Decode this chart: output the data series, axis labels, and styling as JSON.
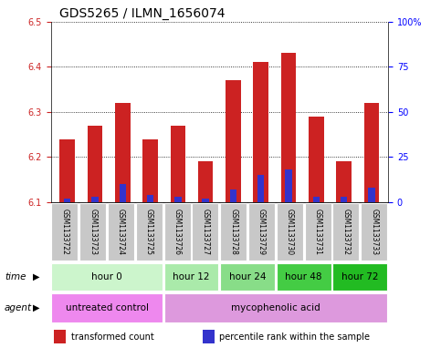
{
  "title": "GDS5265 / ILMN_1656074",
  "samples": [
    "GSM1133722",
    "GSM1133723",
    "GSM1133724",
    "GSM1133725",
    "GSM1133726",
    "GSM1133727",
    "GSM1133728",
    "GSM1133729",
    "GSM1133730",
    "GSM1133731",
    "GSM1133732",
    "GSM1133733"
  ],
  "transformed_counts": [
    6.24,
    6.27,
    6.32,
    6.24,
    6.27,
    6.19,
    6.37,
    6.41,
    6.43,
    6.29,
    6.19,
    6.32
  ],
  "percentile_ranks": [
    2,
    3,
    10,
    4,
    3,
    2,
    7,
    15,
    18,
    3,
    3,
    8
  ],
  "bar_base": 6.1,
  "ylim_left": [
    6.1,
    6.5
  ],
  "ylim_right": [
    0,
    100
  ],
  "yticks_left": [
    6.1,
    6.2,
    6.3,
    6.4,
    6.5
  ],
  "yticks_right": [
    0,
    25,
    50,
    75,
    100
  ],
  "ytick_labels_right": [
    "0",
    "25",
    "50",
    "75",
    "100%"
  ],
  "bar_color_red": "#cc2222",
  "bar_color_blue": "#3333cc",
  "plot_bg": "#ffffff",
  "time_groups": [
    {
      "label": "hour 0",
      "start": 0,
      "end": 4,
      "color": "#ccf5cc"
    },
    {
      "label": "hour 12",
      "start": 4,
      "end": 6,
      "color": "#aaeaaa"
    },
    {
      "label": "hour 24",
      "start": 6,
      "end": 8,
      "color": "#88dd88"
    },
    {
      "label": "hour 48",
      "start": 8,
      "end": 10,
      "color": "#44cc44"
    },
    {
      "label": "hour 72",
      "start": 10,
      "end": 12,
      "color": "#22bb22"
    }
  ],
  "agent_groups": [
    {
      "label": "untreated control",
      "start": 0,
      "end": 4,
      "color": "#ee88ee"
    },
    {
      "label": "mycophenolic acid",
      "start": 4,
      "end": 12,
      "color": "#dd99dd"
    }
  ],
  "legend_items": [
    {
      "label": "transformed count",
      "color": "#cc2222"
    },
    {
      "label": "percentile rank within the sample",
      "color": "#3333cc"
    }
  ],
  "bar_width": 0.55,
  "title_fontsize": 10,
  "tick_fontsize": 7,
  "sample_fontsize": 5.5,
  "row_fontsize": 7.5,
  "legend_fontsize": 7
}
